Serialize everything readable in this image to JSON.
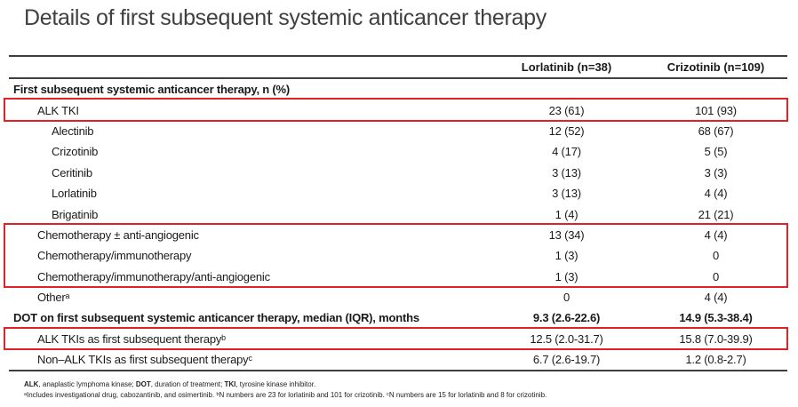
{
  "title": "Details of first subsequent systemic anticancer therapy",
  "table": {
    "column_headers": [
      "Lorlatinib (n=38)",
      "Crizotinib (n=109)"
    ],
    "rows": [
      {
        "label": "First subsequent systemic anticancer therapy, n (%)",
        "indent": 0,
        "bold": true,
        "values": [
          "",
          ""
        ],
        "hl": 0
      },
      {
        "label": "ALK TKI",
        "indent": 1,
        "bold": false,
        "values": [
          "23 (61)",
          "101 (93)"
        ],
        "hl": 1
      },
      {
        "label": "Alectinib",
        "indent": 2,
        "bold": false,
        "values": [
          "12 (52)",
          "68 (67)"
        ],
        "hl": 0
      },
      {
        "label": "Crizotinib",
        "indent": 2,
        "bold": false,
        "values": [
          "4 (17)",
          "5 (5)"
        ],
        "hl": 0
      },
      {
        "label": "Ceritinib",
        "indent": 2,
        "bold": false,
        "values": [
          "3 (13)",
          "3 (3)"
        ],
        "hl": 0
      },
      {
        "label": "Lorlatinib",
        "indent": 2,
        "bold": false,
        "values": [
          "3 (13)",
          "4 (4)"
        ],
        "hl": 0
      },
      {
        "label": "Brigatinib",
        "indent": 2,
        "bold": false,
        "values": [
          "1 (4)",
          "21 (21)"
        ],
        "hl": 0
      },
      {
        "label": "Chemotherapy ± anti-angiogenic",
        "indent": 1,
        "bold": false,
        "values": [
          "13 (34)",
          "4 (4)"
        ],
        "hl": 2
      },
      {
        "label": "Chemotherapy/immunotherapy",
        "indent": 1,
        "bold": false,
        "values": [
          "1 (3)",
          "0"
        ],
        "hl": 2
      },
      {
        "label": "Chemotherapy/immunotherapy/anti-angiogenic",
        "indent": 1,
        "bold": false,
        "values": [
          "1 (3)",
          "0"
        ],
        "hl": 2
      },
      {
        "label": "Otherᵃ",
        "indent": 1,
        "bold": false,
        "values": [
          "0",
          "4 (4)"
        ],
        "hl": 0
      },
      {
        "label": "DOT on first subsequent systemic anticancer therapy, median (IQR), months",
        "indent": 0,
        "bold": true,
        "values": [
          "9.3 (2.6-22.6)",
          "14.9 (5.3-38.4)"
        ],
        "hl": 0
      },
      {
        "label": "ALK TKIs as first subsequent therapyᵇ",
        "indent": 1,
        "bold": false,
        "values": [
          "12.5 (2.0-31.7)",
          "15.8 (7.0-39.9)"
        ],
        "hl": 3
      },
      {
        "label": "Non–ALK TKIs as first subsequent therapyᶜ",
        "indent": 1,
        "bold": false,
        "values": [
          "6.7 (2.6-19.7)",
          "1.2 (0.8-2.7)"
        ],
        "hl": 0
      }
    ]
  },
  "footnotes": {
    "abbreviations": [
      {
        "text": "ALK",
        "bold": true
      },
      {
        "text": ", anaplastic lymphoma kinase; ",
        "bold": false
      },
      {
        "text": "DOT",
        "bold": true
      },
      {
        "text": ", duration of treatment; ",
        "bold": false
      },
      {
        "text": "TKI",
        "bold": true
      },
      {
        "text": ", tyrosine kinase inhibitor.",
        "bold": false
      }
    ],
    "notes": "ᵃIncludes investigational drug, cabozantinib, and osimertinib. ᵇN numbers are 23 for lorlatinib and 101 for crizotinib. ᶜN numbers are 15 for lorlatinib and 8 for crizotinib."
  },
  "colors": {
    "highlight_box": "#e22026",
    "rule": "#3f3f3f",
    "text": "#1a1a1a",
    "title": "#404040"
  }
}
